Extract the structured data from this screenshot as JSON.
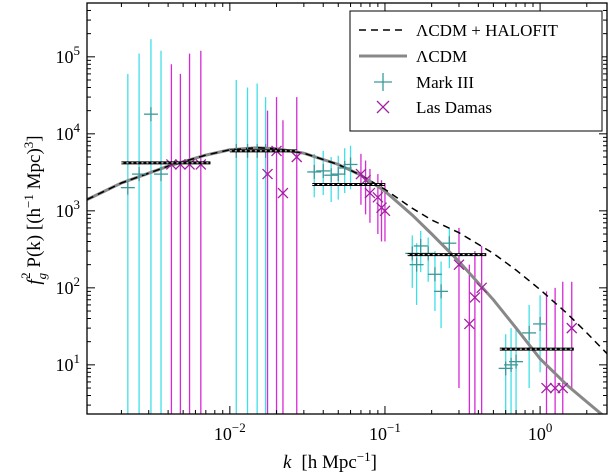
{
  "chart_data": {
    "type": "scatter",
    "title": "",
    "xlabel": "k  [h Mpc⁻¹]",
    "ylabel": "f_g² P(k) [(h⁻¹ Mpc)³]",
    "x_scale": "log",
    "y_scale": "log",
    "xlim": [
      0.0012,
      2.7
    ],
    "ylim": [
      2.3,
      500000
    ],
    "x_ticks": [
      {
        "value": 0.01,
        "base": "10",
        "exp": "−2"
      },
      {
        "value": 0.1,
        "base": "10",
        "exp": "−1"
      },
      {
        "value": 1,
        "base": "10",
        "exp": "0"
      }
    ],
    "y_ticks": [
      {
        "value": 10,
        "base": "10",
        "exp": "1"
      },
      {
        "value": 100,
        "base": "10",
        "exp": "2"
      },
      {
        "value": 1000,
        "base": "10",
        "exp": "3"
      },
      {
        "value": 10000,
        "base": "10",
        "exp": "4"
      },
      {
        "value": 100000,
        "base": "10",
        "exp": "5"
      }
    ],
    "grid": false,
    "legend_position": "top-right",
    "colors": {
      "mark3": "#3ee0e8",
      "lasdamas": "#d62ad6",
      "lcdm": "#888888",
      "halofit": "#000000",
      "binned": "#000000"
    },
    "series": [
      {
        "name": "ΛCDM + HALOFIT",
        "style": "dashed",
        "x": [
          0.0012,
          0.002,
          0.004,
          0.007,
          0.01,
          0.015,
          0.02,
          0.03,
          0.05,
          0.07,
          0.1,
          0.15,
          0.2,
          0.3,
          0.5,
          0.7,
          1.0,
          1.5,
          2.0,
          2.7
        ],
        "y": [
          1400,
          2300,
          3800,
          5300,
          6200,
          6600,
          6400,
          5600,
          4000,
          2900,
          1900,
          1080,
          760,
          520,
          280,
          170,
          95,
          46,
          26,
          14
        ]
      },
      {
        "name": "ΛCDM",
        "style": "solid",
        "x": [
          0.0012,
          0.002,
          0.004,
          0.007,
          0.01,
          0.015,
          0.02,
          0.03,
          0.05,
          0.07,
          0.1,
          0.15,
          0.2,
          0.3,
          0.5,
          0.7,
          1.0,
          1.5,
          2.0,
          2.7
        ],
        "y": [
          1400,
          2300,
          3800,
          5300,
          6200,
          6600,
          6400,
          5600,
          4000,
          2900,
          1800,
          880,
          500,
          220,
          70,
          30,
          12,
          5.4,
          3.3,
          2.0
        ]
      },
      {
        "name": "Mark III",
        "marker": "plus",
        "points": [
          {
            "x": 0.0022,
            "y": 2000,
            "lo": 2.3,
            "hi": 60000
          },
          {
            "x": 0.0026,
            "y": 3000,
            "lo": 2.3,
            "hi": 110000
          },
          {
            "x": 0.0031,
            "y": 18000,
            "lo": 2.3,
            "hi": 170000
          },
          {
            "x": 0.0036,
            "y": 3000,
            "lo": 2.3,
            "hi": 120000
          },
          {
            "x": 0.011,
            "y": 6000,
            "lo": 2.3,
            "hi": 50000
          },
          {
            "x": 0.013,
            "y": 6000,
            "lo": 2.3,
            "hi": 40000
          },
          {
            "x": 0.015,
            "y": 6000,
            "lo": 2.3,
            "hi": 45000
          },
          {
            "x": 0.017,
            "y": 6000,
            "lo": 2.3,
            "hi": 30000
          },
          {
            "x": 0.035,
            "y": 3200,
            "lo": 1500,
            "hi": 5500
          },
          {
            "x": 0.04,
            "y": 3300,
            "lo": 1600,
            "hi": 6000
          },
          {
            "x": 0.045,
            "y": 2900,
            "lo": 1300,
            "hi": 5000
          },
          {
            "x": 0.05,
            "y": 3000,
            "lo": 1400,
            "hi": 5200
          },
          {
            "x": 0.055,
            "y": 3600,
            "lo": 1700,
            "hi": 6500
          },
          {
            "x": 0.06,
            "y": 4000,
            "lo": 1900,
            "hi": 7000
          },
          {
            "x": 0.15,
            "y": 280,
            "lo": 100,
            "hi": 480
          },
          {
            "x": 0.16,
            "y": 200,
            "lo": 60,
            "hi": 380
          },
          {
            "x": 0.17,
            "y": 350,
            "lo": 160,
            "hi": 550
          },
          {
            "x": 0.19,
            "y": 280,
            "lo": 120,
            "hi": 450
          },
          {
            "x": 0.21,
            "y": 150,
            "lo": 50,
            "hi": 300
          },
          {
            "x": 0.23,
            "y": 90,
            "lo": 30,
            "hi": 220
          },
          {
            "x": 0.26,
            "y": 380,
            "lo": 180,
            "hi": 600
          },
          {
            "x": 0.6,
            "y": 9,
            "lo": 2.3,
            "hi": 25
          },
          {
            "x": 0.65,
            "y": 10,
            "lo": 2.3,
            "hi": 30
          },
          {
            "x": 0.7,
            "y": 11,
            "lo": 2.3,
            "hi": 30
          },
          {
            "x": 0.85,
            "y": 26,
            "lo": 5,
            "hi": 60
          },
          {
            "x": 1.0,
            "y": 34,
            "lo": 8,
            "hi": 80
          }
        ]
      },
      {
        "name": "Las Damas",
        "marker": "x",
        "points": [
          {
            "x": 0.0042,
            "y": 4000,
            "lo": 2.3,
            "hi": 80000
          },
          {
            "x": 0.0048,
            "y": 4000,
            "lo": 2.3,
            "hi": 60000
          },
          {
            "x": 0.0055,
            "y": 4000,
            "lo": 2.3,
            "hi": 110000
          },
          {
            "x": 0.0065,
            "y": 4000,
            "lo": 2.3,
            "hi": 120000
          },
          {
            "x": 0.0175,
            "y": 3000,
            "lo": 2.3,
            "hi": 20000
          },
          {
            "x": 0.02,
            "y": 6000,
            "lo": 2.3,
            "hi": 30000
          },
          {
            "x": 0.022,
            "y": 1700,
            "lo": 2.3,
            "hi": 15000
          },
          {
            "x": 0.027,
            "y": 5000,
            "lo": 2.3,
            "hi": 30000
          },
          {
            "x": 0.07,
            "y": 3000,
            "lo": 1200,
            "hi": 5500
          },
          {
            "x": 0.075,
            "y": 2500,
            "lo": 900,
            "hi": 4500
          },
          {
            "x": 0.08,
            "y": 1700,
            "lo": 700,
            "hi": 3500
          },
          {
            "x": 0.09,
            "y": 1500,
            "lo": 500,
            "hi": 3000
          },
          {
            "x": 0.095,
            "y": 1100,
            "lo": 400,
            "hi": 2500
          },
          {
            "x": 0.1,
            "y": 1000,
            "lo": 400,
            "hi": 2300
          },
          {
            "x": 0.3,
            "y": 200,
            "lo": 5,
            "hi": 600
          },
          {
            "x": 0.35,
            "y": 34,
            "lo": 2.3,
            "hi": 200
          },
          {
            "x": 0.38,
            "y": 75,
            "lo": 2.3,
            "hi": 300
          },
          {
            "x": 0.42,
            "y": 100,
            "lo": 2.3,
            "hi": 350
          },
          {
            "x": 1.1,
            "y": 5,
            "lo": 2.3,
            "hi": 90
          },
          {
            "x": 1.25,
            "y": 5,
            "lo": 2.3,
            "hi": 100
          },
          {
            "x": 1.4,
            "y": 5,
            "lo": 2.3,
            "hi": 120
          },
          {
            "x": 1.6,
            "y": 30,
            "lo": 5,
            "hi": 120
          }
        ]
      },
      {
        "name": "",
        "style": "binned",
        "bins": [
          {
            "x0": 0.002,
            "x1": 0.0075,
            "y": 4200
          },
          {
            "x0": 0.01,
            "x1": 0.027,
            "y": 6000
          },
          {
            "x0": 0.034,
            "x1": 0.1,
            "y": 2200
          },
          {
            "x0": 0.14,
            "x1": 0.45,
            "y": 270
          },
          {
            "x0": 0.55,
            "x1": 1.65,
            "y": 16
          }
        ]
      }
    ]
  },
  "legend": {
    "halofit_label": "ΛCDM + HALOFIT",
    "lcdm_label": "ΛCDM",
    "mark3_label": "Mark III",
    "lasdamas_label": "Las Damas"
  },
  "axes": {
    "xlabel_var": "k",
    "xlabel_rest": "[h Mpc",
    "xlabel_sup": "−1",
    "xlabel_close": "]",
    "ylabel_a": "f",
    "ylabel_sub": "g",
    "ylabel_sup2": "2",
    "ylabel_b": " P(k) [(h",
    "ylabel_supm1": "−1",
    "ylabel_c": " Mpc)",
    "ylabel_sup3": "3",
    "ylabel_d": "]"
  }
}
